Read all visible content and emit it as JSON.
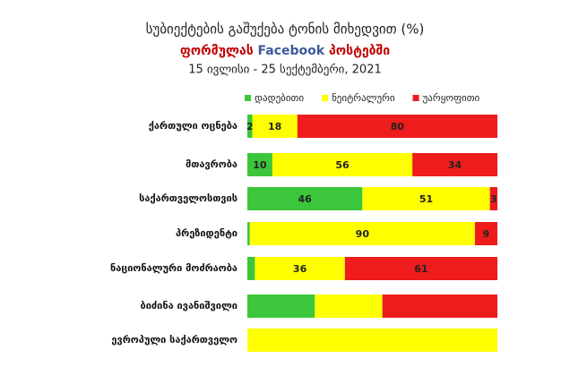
{
  "chart_data": {
    "type": "stacked-bar-horizontal",
    "title": "სუბიექტების გაშუქება ტონის მიხედვით (%)",
    "subtitle": [
      {
        "text": "ფორმულას ",
        "color": "#c00000"
      },
      {
        "text": "Facebook",
        "color": "#3b5998"
      },
      {
        "text": " პოსტებში",
        "color": "#c00000"
      }
    ],
    "date_range": "15 ივლისი - 25 სექტემბერი, 2021",
    "categories": [
      "ქართული ოცნება",
      "მთავრობა",
      "საქართველოსთვის",
      "პრეზიდენტი",
      "ნაციონალური მოძრაობა",
      "ბიძინა ივანიშვილი",
      "ევროპული საქართველო"
    ],
    "series": [
      {
        "name": "დადებითი",
        "color": "#3cc63c",
        "values": [
          2,
          10,
          46,
          1,
          3,
          27,
          0
        ],
        "value_labels": [
          "2",
          "10",
          "46",
          null,
          null,
          null,
          null
        ]
      },
      {
        "name": "ნეიტრალური",
        "color": "#ffff00",
        "values": [
          18,
          56,
          51,
          90,
          36,
          27,
          100
        ],
        "value_labels": [
          "18",
          "56",
          "51",
          "90",
          "36",
          null,
          null
        ]
      },
      {
        "name": "უარყოფითი",
        "color": "#ee1c1c",
        "values": [
          80,
          34,
          3,
          9,
          61,
          46,
          0
        ],
        "value_labels": [
          "80",
          "34",
          "3",
          "9",
          "61",
          null,
          null
        ]
      }
    ],
    "legend": "top"
  }
}
